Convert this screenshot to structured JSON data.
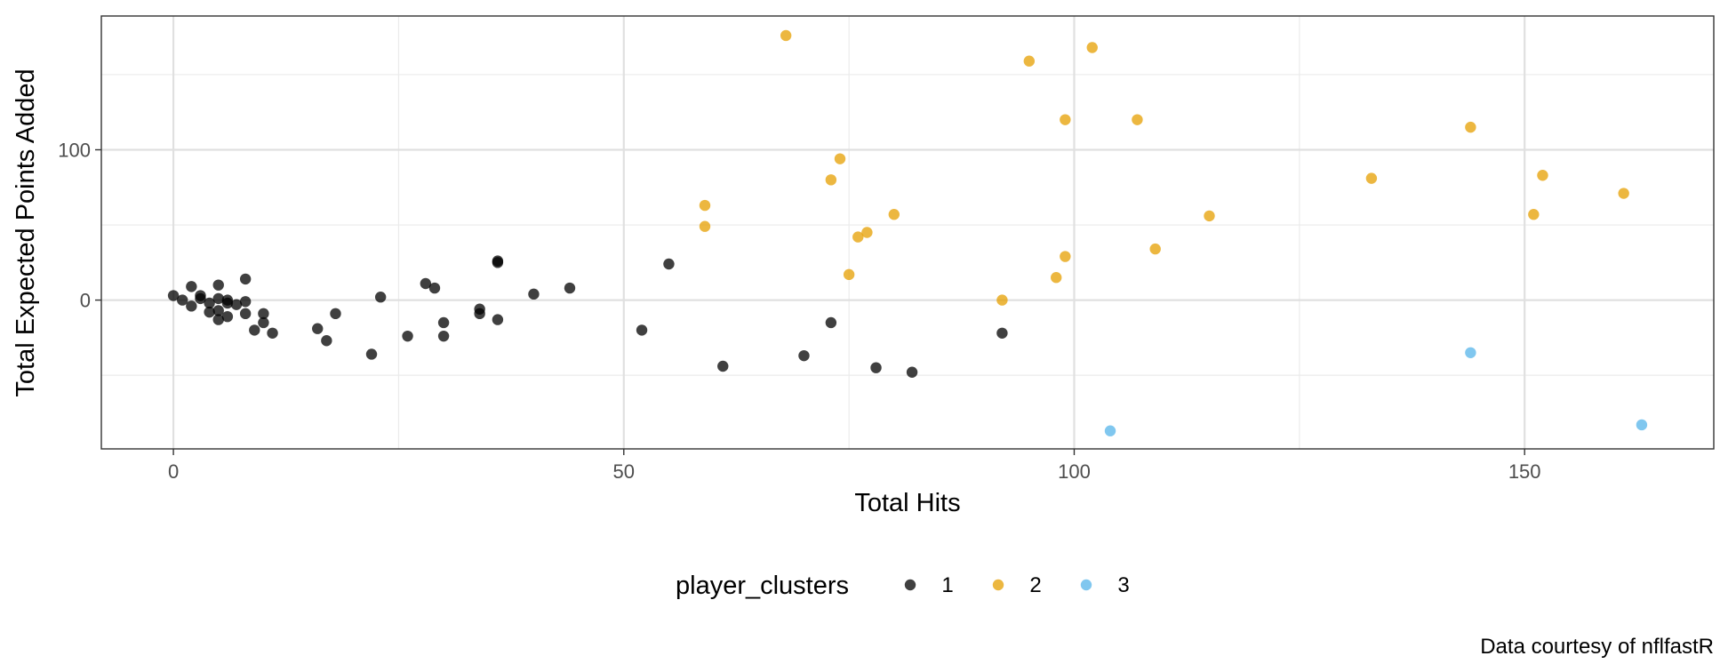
{
  "chart_data": {
    "type": "scatter",
    "xlabel": "Total Hits",
    "ylabel": "Total Expected Points Added",
    "xlim": [
      -8,
      171
    ],
    "ylim": [
      -99,
      189
    ],
    "x_ticks": [
      0,
      50,
      100,
      150
    ],
    "y_ticks": [
      0,
      100
    ],
    "grid": true,
    "legend": {
      "title": "player_clusters",
      "position": "bottom",
      "entries": [
        "1",
        "2",
        "3"
      ]
    },
    "caption": "Data courtesy of nflfastR",
    "colors": {
      "1": "#000000",
      "2": "#E69F00",
      "3": "#56B4E9"
    },
    "series": [
      {
        "name": "1",
        "points": [
          [
            0,
            3
          ],
          [
            1,
            0
          ],
          [
            2,
            9
          ],
          [
            2,
            -4
          ],
          [
            3,
            1
          ],
          [
            3,
            3
          ],
          [
            4,
            -2
          ],
          [
            4,
            -8
          ],
          [
            5,
            10
          ],
          [
            5,
            1
          ],
          [
            5,
            -7
          ],
          [
            5,
            -13
          ],
          [
            6,
            -2
          ],
          [
            6,
            0
          ],
          [
            6,
            -11
          ],
          [
            7,
            -3
          ],
          [
            8,
            14
          ],
          [
            8,
            -1
          ],
          [
            8,
            -9
          ],
          [
            9,
            -20
          ],
          [
            10,
            -9
          ],
          [
            10,
            -15
          ],
          [
            11,
            -22
          ],
          [
            16,
            -19
          ],
          [
            17,
            -27
          ],
          [
            18,
            -9
          ],
          [
            22,
            -36
          ],
          [
            23,
            2
          ],
          [
            26,
            -24
          ],
          [
            28,
            11
          ],
          [
            29,
            8
          ],
          [
            30,
            -15
          ],
          [
            30,
            -24
          ],
          [
            34,
            -6
          ],
          [
            34,
            -9
          ],
          [
            36,
            26
          ],
          [
            36,
            25
          ],
          [
            36,
            -13
          ],
          [
            40,
            4
          ],
          [
            44,
            8
          ],
          [
            52,
            -20
          ],
          [
            55,
            24
          ],
          [
            61,
            -44
          ],
          [
            70,
            -37
          ],
          [
            73,
            -15
          ],
          [
            78,
            -45
          ],
          [
            82,
            -48
          ],
          [
            92,
            -22
          ]
        ]
      },
      {
        "name": "2",
        "points": [
          [
            59,
            63
          ],
          [
            59,
            49
          ],
          [
            68,
            176
          ],
          [
            73,
            80
          ],
          [
            74,
            94
          ],
          [
            75,
            17
          ],
          [
            76,
            42
          ],
          [
            77,
            45
          ],
          [
            80,
            57
          ],
          [
            92,
            0
          ],
          [
            95,
            159
          ],
          [
            98,
            15
          ],
          [
            99,
            120
          ],
          [
            99,
            29
          ],
          [
            102,
            168
          ],
          [
            107,
            120
          ],
          [
            109,
            34
          ],
          [
            115,
            56
          ],
          [
            133,
            81
          ],
          [
            144,
            115
          ],
          [
            151,
            57
          ],
          [
            152,
            83
          ],
          [
            161,
            71
          ]
        ]
      },
      {
        "name": "3",
        "points": [
          [
            104,
            -87
          ],
          [
            144,
            -35
          ],
          [
            163,
            -83
          ]
        ]
      }
    ]
  }
}
